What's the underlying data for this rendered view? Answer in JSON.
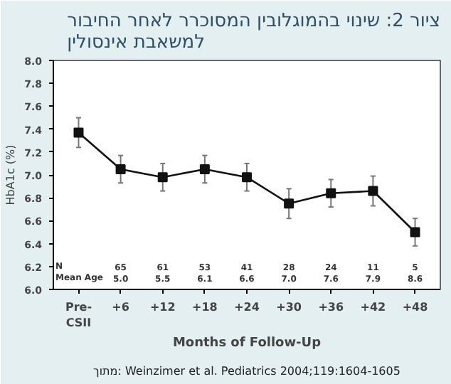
{
  "chart_data": {
    "type": "line",
    "title": "ציור 2: שינוי בהמוגלובין המסוכרר לאחר החיבור\nלמשאבת אינסולין",
    "xlabel": "Months of Follow-Up",
    "ylabel": "HbA1c (%)",
    "categories": [
      "Pre-\nCSII",
      "+6",
      "+12",
      "+18",
      "+24",
      "+30",
      "+36",
      "+42",
      "+48"
    ],
    "series": [
      {
        "color": "#111111",
        "values": [
          7.37,
          7.05,
          6.98,
          7.05,
          6.98,
          6.75,
          6.84,
          6.86,
          6.5
        ],
        "errors": [
          0.13,
          0.12,
          0.12,
          0.12,
          0.12,
          0.13,
          0.12,
          0.13,
          0.12
        ]
      }
    ],
    "marker": "square",
    "line_style": "solid",
    "ylim": [
      6.0,
      8.0
    ],
    "yticks": [
      {
        "value": 6.0,
        "label": "6.0"
      },
      6.2,
      6.4,
      6.6,
      6.8,
      {
        "value": 7.0,
        "label": "7.0"
      },
      7.2,
      7.4,
      7.6,
      7.8,
      {
        "value": 8.0,
        "label": "8.0"
      }
    ],
    "annotations": [
      "N",
      "65",
      "61",
      "53",
      "41",
      "28",
      "24",
      "11",
      "5",
      "Mean Age",
      "5.0",
      "5.5",
      "6.1",
      "6.6",
      "7.0",
      "7.6",
      "7.9",
      "8.6",
      "מתוך: Weinzimer et al. Pediatrics 2004;119:1604-1605"
    ],
    "grid": false
  }
}
